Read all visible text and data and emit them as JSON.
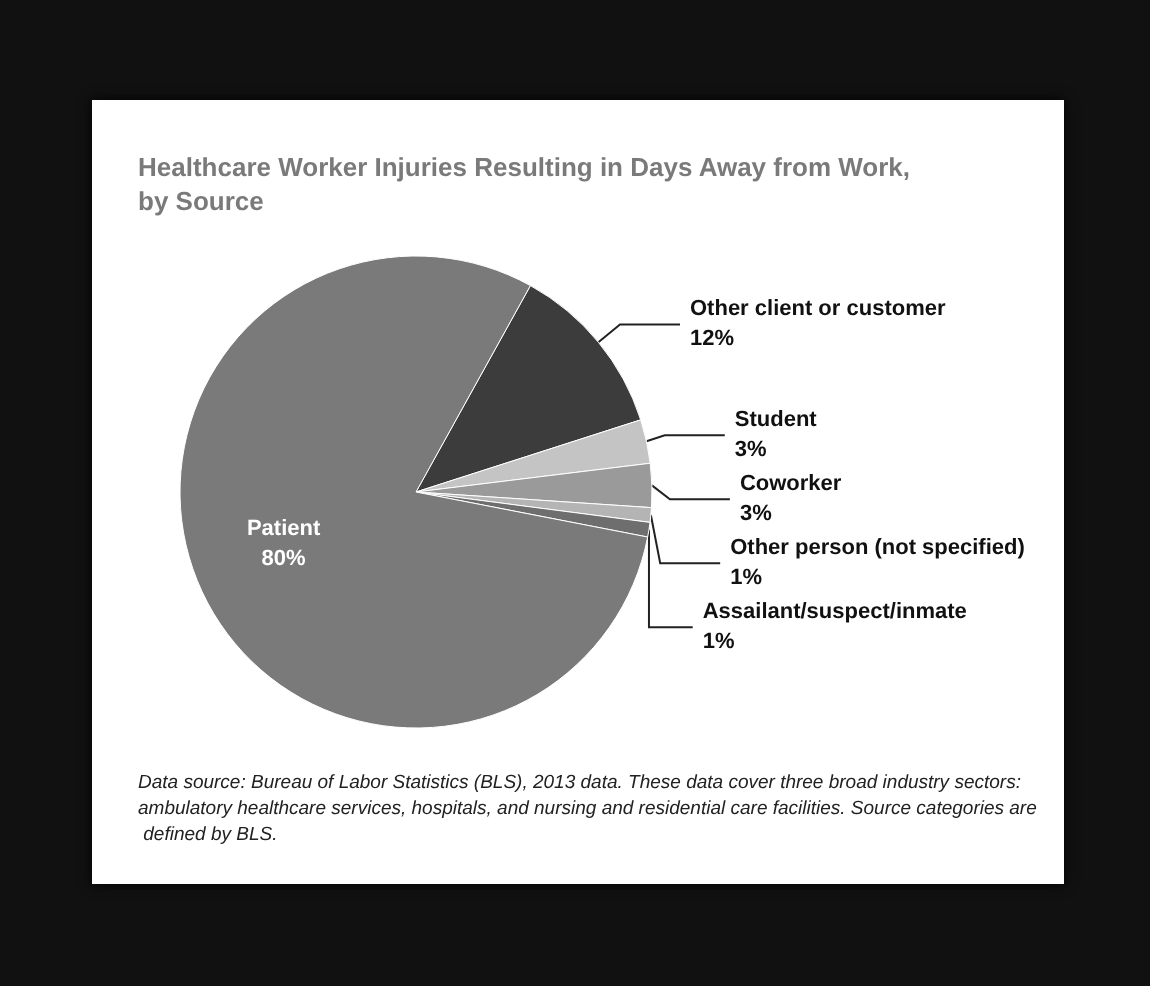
{
  "chart_data": {
    "type": "pie",
    "title": "Healthcare Worker Injuries Resulting in Days Away from Work,\nby Source",
    "categories": [
      "Other client or customer",
      "Student",
      "Coworker",
      "Other person (not specified)",
      "Assailant/suspect/inmate",
      "Patient"
    ],
    "values": [
      12,
      3,
      3,
      1,
      1,
      80
    ],
    "colors": [
      "#3c3c3c",
      "#c4c4c4",
      "#9a9a9a",
      "#b4b4b4",
      "#6e6e6e",
      "#7a7a7a"
    ],
    "value_labels": [
      "12%",
      "3%",
      "3%",
      "1%",
      "1%",
      "80%"
    ],
    "annotations": [
      "Data source: Bureau of Labor Statistics (BLS), 2013 data. These data cover three broad industry sectors: ambulatory healthcare services, hospitals, and nursing and residential care facilities. Source categories are defined by BLS."
    ]
  }
}
